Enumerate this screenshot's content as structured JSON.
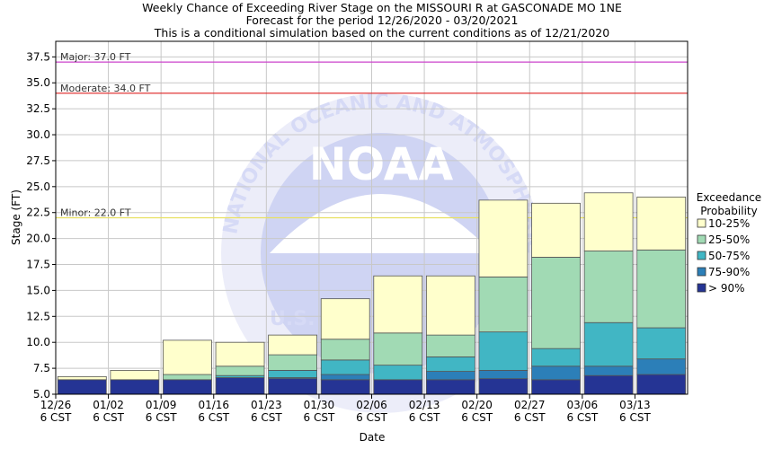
{
  "header": {
    "line1": "Weekly Chance of Exceeding River Stage on the MISSOURI R at GASCONADE MO 1NE",
    "line2": "Forecast for the period 12/26/2020 - 03/20/2021",
    "line3": "This is a conditional simulation based on the current conditions as of 12/21/2020"
  },
  "watermark": {
    "logo_text": "NOAA",
    "ring_text": "NATIONAL OCEANIC AND ATMOSPHERIC ADMINISTRATION",
    "bottom_text": "U.S."
  },
  "colors": {
    "p10_25": "#ffffcc",
    "p25_50": "#a1dab4",
    "p50_75": "#41b6c4",
    "p75_90": "#2c7fb8",
    "p90": "#253494",
    "major": "#cc44cc",
    "moderate": "#dd2222",
    "minor": "#e8e060"
  },
  "chart_data": {
    "type": "bar",
    "title": "Weekly Chance of Exceeding River Stage on the MISSOURI R at GASCONADE MO 1NE",
    "xlabel": "Date",
    "ylabel": "Stage (FT)",
    "ylim": [
      5.0,
      39.0
    ],
    "yticks": [
      5.0,
      7.5,
      10.0,
      12.5,
      15.0,
      17.5,
      20.0,
      22.5,
      25.0,
      27.5,
      30.0,
      32.5,
      35.0,
      37.5
    ],
    "ytick_labels": [
      "5.0",
      "7.5",
      "10.0",
      "12.5",
      "15.0",
      "17.5",
      "20.0",
      "22.5",
      "25.0",
      "27.5",
      "30.0",
      "32.5",
      "35.0",
      "37.5"
    ],
    "categories": [
      [
        "12/26",
        "6 CST"
      ],
      [
        "01/02",
        "6 CST"
      ],
      [
        "01/09",
        "6 CST"
      ],
      [
        "01/16",
        "6 CST"
      ],
      [
        "01/23",
        "6 CST"
      ],
      [
        "01/30",
        "6 CST"
      ],
      [
        "02/06",
        "6 CST"
      ],
      [
        "02/13",
        "6 CST"
      ],
      [
        "02/20",
        "6 CST"
      ],
      [
        "02/27",
        "6 CST"
      ],
      [
        "03/06",
        "6 CST"
      ],
      [
        "03/13",
        "6 CST"
      ]
    ],
    "grid": true,
    "flood_levels": [
      {
        "label": "Major: 37.0 FT",
        "value": 37.0,
        "color_key": "major"
      },
      {
        "label": "Moderate: 34.0 FT",
        "value": 34.0,
        "color_key": "moderate"
      },
      {
        "label": "Minor: 22.0 FT",
        "value": 22.0,
        "color_key": "minor"
      }
    ],
    "legend": {
      "title_line1": "Exceedance",
      "title_line2": "Probability",
      "placement": "right",
      "entries": [
        {
          "label": "10-25%",
          "color_key": "p10_25"
        },
        {
          "label": "25-50%",
          "color_key": "p25_50"
        },
        {
          "label": "50-75%",
          "color_key": "p50_75"
        },
        {
          "label": "75-90%",
          "color_key": "p75_90"
        },
        {
          "label": "> 90%",
          "color_key": "p90"
        }
      ]
    },
    "series": [
      {
        "name": "> 90%",
        "color_key": "p90",
        "values": [
          6.4,
          6.4,
          6.4,
          6.6,
          6.5,
          6.4,
          6.4,
          6.4,
          6.5,
          6.4,
          6.8,
          6.9
        ]
      },
      {
        "name": "75-90%",
        "color_key": "p75_90",
        "values": [
          6.4,
          6.4,
          6.4,
          6.6,
          6.6,
          6.9,
          6.4,
          7.2,
          7.3,
          7.7,
          7.7,
          8.4
        ]
      },
      {
        "name": "50-75%",
        "color_key": "p50_75",
        "values": [
          6.4,
          6.4,
          6.4,
          6.8,
          7.3,
          8.3,
          7.8,
          8.6,
          11.0,
          9.4,
          11.9,
          11.4
        ]
      },
      {
        "name": "25-50%",
        "color_key": "p25_50",
        "values": [
          6.4,
          6.4,
          6.9,
          7.7,
          8.8,
          10.3,
          10.9,
          10.7,
          16.3,
          18.2,
          18.8,
          18.9
        ]
      },
      {
        "name": "10-25%",
        "color_key": "p10_25",
        "values": [
          6.7,
          7.3,
          10.2,
          10.0,
          10.7,
          14.2,
          16.4,
          16.4,
          23.7,
          23.4,
          24.4,
          24.0
        ]
      }
    ]
  }
}
